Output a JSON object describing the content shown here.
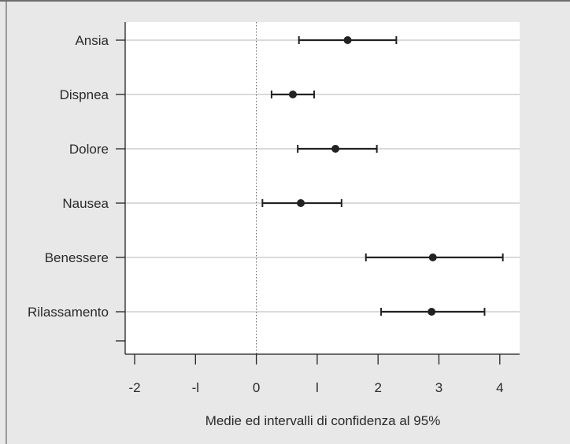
{
  "chart_data": {
    "type": "scatter",
    "title": "",
    "xlabel": "Medie ed intervalli di confidenza al 95%",
    "ylabel": "",
    "xlim": [
      -2.1,
      4.3
    ],
    "xticks": [
      -2,
      -1,
      0,
      1,
      2,
      3,
      4
    ],
    "xtick_labels": [
      "-2",
      "-l",
      "0",
      "l",
      "2",
      "3",
      "4"
    ],
    "reference_line_x": 0,
    "grid": "horizontal lines at each category",
    "categories": [
      "Ansia",
      "Dispnea",
      "Dolore",
      "Nausea",
      "Benessere",
      "Rilassamento"
    ],
    "series": [
      {
        "means": [
          1.5,
          0.6,
          1.3,
          0.73,
          2.9,
          2.88
        ],
        "lower": [
          0.7,
          0.25,
          0.68,
          0.1,
          1.8,
          2.05
        ],
        "upper": [
          2.3,
          0.95,
          1.98,
          1.4,
          4.05,
          3.75
        ]
      }
    ],
    "colors": {
      "background": "#e8e8e8",
      "plot_area": "#ffffff",
      "marks": "#222222",
      "grid": "#b4b4b4"
    }
  }
}
